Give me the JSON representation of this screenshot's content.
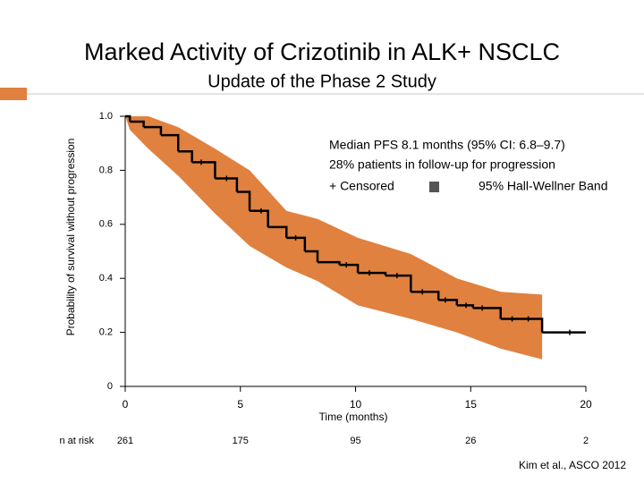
{
  "chart_data": {
    "type": "line",
    "step": true,
    "title": "Marked Activity of Crizotinib in ALK+ NSCLC",
    "subtitle": "Update of the Phase 2 Study",
    "xlabel": "Time (months)",
    "ylabel": "Probability of survival without progression",
    "xlim": [
      0,
      20
    ],
    "ylim": [
      0,
      1
    ],
    "xticks": [
      0,
      5,
      10,
      15,
      20
    ],
    "yticks": [
      0,
      0.2,
      0.4,
      0.6,
      0.8,
      {
        "value": 1,
        "label": "1.0"
      }
    ],
    "series": [
      {
        "color": "#000000",
        "x": [
          0,
          0.2,
          0.8,
          1.55,
          2.3,
          2.9,
          3.9,
          4.85,
          5.4,
          6.2,
          7,
          7.8,
          8.35,
          9.3,
          10.1,
          11.3,
          12.4,
          13.6,
          14.4,
          15.1,
          16.3,
          18.1,
          20
        ],
        "values": [
          1,
          0.98,
          0.96,
          0.93,
          0.87,
          0.83,
          0.77,
          0.72,
          0.65,
          0.59,
          0.55,
          0.5,
          0.46,
          0.45,
          0.42,
          0.41,
          0.35,
          0.32,
          0.3,
          0.29,
          0.25,
          0.2,
          0.2
        ]
      }
    ],
    "censored": [
      3.3,
      4.4,
      5.9,
      7.4,
      9.6,
      10.6,
      11.8,
      12.9,
      13.9,
      14.8,
      15.5,
      16.8,
      17.5,
      19.3
    ],
    "band": {
      "color": "#e0813f",
      "x": [
        0,
        0.2,
        1,
        2.3,
        3.9,
        5.4,
        7,
        8.35,
        10.1,
        12.4,
        14.4,
        16.3,
        18.1
      ],
      "upper": [
        1,
        1,
        1,
        0.96,
        0.88,
        0.8,
        0.65,
        0.62,
        0.55,
        0.49,
        0.4,
        0.35,
        0.34
      ],
      "lower": [
        1,
        0.95,
        0.88,
        0.78,
        0.64,
        0.52,
        0.44,
        0.39,
        0.3,
        0.25,
        0.2,
        0.14,
        0.1
      ]
    },
    "annotations": [
      "Median PFS 8.1 months (95% CI: 6.8–9.7)",
      "28% patients in follow-up for progression"
    ],
    "legend": [
      "+ Censored",
      "95% Hall-Wellner Band"
    ],
    "at_risk": {
      "label": "n at risk",
      "values": [
        261,
        175,
        95,
        26,
        2
      ]
    },
    "source": "Kim et al., ASCO 2012"
  }
}
